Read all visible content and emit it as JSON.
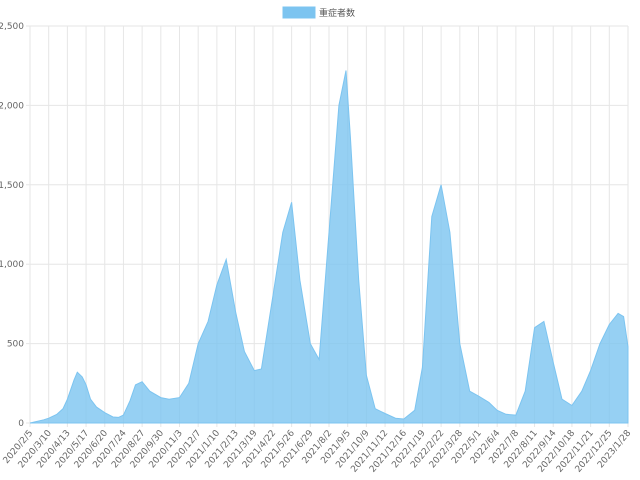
{
  "chart_data": {
    "type": "area",
    "legend": {
      "label": "重症者数",
      "position": "top-center"
    },
    "series": [
      {
        "name": "重症者数",
        "color": "#7cc4f0",
        "points": [
          [
            "2020-02-05",
            0
          ],
          [
            "2020-03-01",
            20
          ],
          [
            "2020-03-10",
            30
          ],
          [
            "2020-03-25",
            55
          ],
          [
            "2020-04-05",
            90
          ],
          [
            "2020-04-13",
            150
          ],
          [
            "2020-04-25",
            270
          ],
          [
            "2020-05-01",
            320
          ],
          [
            "2020-05-10",
            290
          ],
          [
            "2020-05-17",
            240
          ],
          [
            "2020-05-25",
            150
          ],
          [
            "2020-06-05",
            100
          ],
          [
            "2020-06-20",
            65
          ],
          [
            "2020-07-05",
            38
          ],
          [
            "2020-07-15",
            35
          ],
          [
            "2020-07-24",
            50
          ],
          [
            "2020-08-05",
            140
          ],
          [
            "2020-08-15",
            240
          ],
          [
            "2020-08-27",
            260
          ],
          [
            "2020-09-10",
            200
          ],
          [
            "2020-09-30",
            160
          ],
          [
            "2020-10-15",
            150
          ],
          [
            "2020-11-03",
            160
          ],
          [
            "2020-11-20",
            250
          ],
          [
            "2020-12-07",
            500
          ],
          [
            "2020-12-25",
            640
          ],
          [
            "2021-01-10",
            870
          ],
          [
            "2021-01-27",
            1030
          ],
          [
            "2021-02-13",
            700
          ],
          [
            "2021-03-01",
            450
          ],
          [
            "2021-03-19",
            330
          ],
          [
            "2021-04-01",
            340
          ],
          [
            "2021-04-22",
            800
          ],
          [
            "2021-05-10",
            1200
          ],
          [
            "2021-05-26",
            1390
          ],
          [
            "2021-06-10",
            900
          ],
          [
            "2021-06-29",
            500
          ],
          [
            "2021-07-15",
            400
          ],
          [
            "2021-08-02",
            1200
          ],
          [
            "2021-08-20",
            2000
          ],
          [
            "2021-09-02",
            2220
          ],
          [
            "2021-09-10",
            1800
          ],
          [
            "2021-09-25",
            900
          ],
          [
            "2021-10-09",
            300
          ],
          [
            "2021-10-25",
            90
          ],
          [
            "2021-11-12",
            60
          ],
          [
            "2021-12-01",
            30
          ],
          [
            "2021-12-16",
            25
          ],
          [
            "2022-01-05",
            80
          ],
          [
            "2022-01-19",
            350
          ],
          [
            "2022-02-05",
            1300
          ],
          [
            "2022-02-22",
            1500
          ],
          [
            "2022-03-10",
            1200
          ],
          [
            "2022-03-28",
            500
          ],
          [
            "2022-04-15",
            200
          ],
          [
            "2022-05-01",
            170
          ],
          [
            "2022-05-20",
            130
          ],
          [
            "2022-06-04",
            80
          ],
          [
            "2022-06-20",
            55
          ],
          [
            "2022-07-08",
            50
          ],
          [
            "2022-07-25",
            200
          ],
          [
            "2022-08-11",
            600
          ],
          [
            "2022-08-28",
            640
          ],
          [
            "2022-09-14",
            380
          ],
          [
            "2022-09-30",
            150
          ],
          [
            "2022-10-18",
            110
          ],
          [
            "2022-11-05",
            200
          ],
          [
            "2022-11-21",
            330
          ],
          [
            "2022-12-08",
            500
          ],
          [
            "2022-12-25",
            620
          ],
          [
            "2023-01-10",
            690
          ],
          [
            "2023-01-20",
            670
          ],
          [
            "2023-01-28",
            480
          ]
        ]
      }
    ],
    "x_tick_labels": [
      "2020/2/5",
      "2020/3/10",
      "2020/4/13",
      "2020/5/17",
      "2020/6/20",
      "2020/7/24",
      "2020/8/27",
      "2020/9/30",
      "2020/11/3",
      "2020/12/7",
      "2021/1/10",
      "2021/2/13",
      "2021/3/19",
      "2021/4/22",
      "2021/5/26",
      "2021/6/29",
      "2021/8/2",
      "2021/9/5",
      "2021/10/9",
      "2021/11/12",
      "2021/12/16",
      "2022/1/19",
      "2022/2/22",
      "2022/3/28",
      "2022/5/1",
      "2022/6/4",
      "2022/7/8",
      "2022/8/11",
      "2022/9/14",
      "2022/10/18",
      "2022/11/21",
      "2022/12/25",
      "2023/1/28"
    ],
    "x_range": [
      "2020-02-05",
      "2023-01-28"
    ],
    "y_ticks": [
      0,
      500,
      1000,
      1500,
      2000,
      2500
    ],
    "y_tick_labels": [
      "0",
      "500",
      "1,000",
      "1,500",
      "2,000",
      "2,500"
    ],
    "ylim": [
      0,
      2500
    ],
    "grid": true
  }
}
